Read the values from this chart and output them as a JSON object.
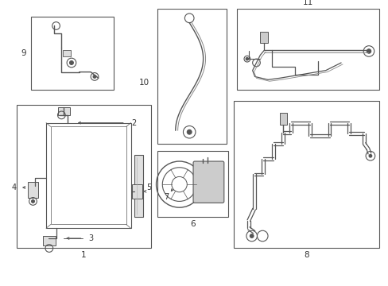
{
  "bg_color": "#ffffff",
  "line_color": "#555555",
  "box_color": "#555555",
  "label_color": "#333333",
  "fig_width": 4.89,
  "fig_height": 3.6,
  "dpi": 100
}
